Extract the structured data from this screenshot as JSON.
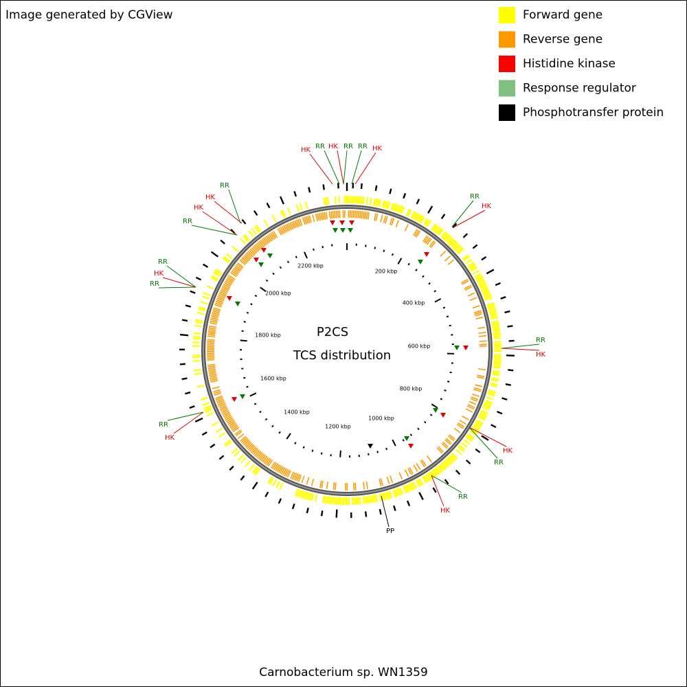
{
  "header": {
    "title": "Image generated by CGView"
  },
  "legend": [
    {
      "label": "Forward gene",
      "color": "#ffff00"
    },
    {
      "label": "Reverse gene",
      "color": "#ff9900"
    },
    {
      "label": "Histidine kinase",
      "color": "#ff0000"
    },
    {
      "label": "Response regulator",
      "color": "#7fbf7f"
    },
    {
      "label": "Phosphotransfer protein",
      "color": "#000000"
    }
  ],
  "center": {
    "title": "P2CS",
    "subtitle": "TCS distribution"
  },
  "scale_labels": [
    "200 kbp",
    "400 kbp",
    "600 kbp",
    "800 kbp",
    "1000 kbp",
    "1200 kbp",
    "1400 kbp",
    "1600 kbp",
    "1800 kbp",
    "2000 kbp",
    "2200 kbp"
  ],
  "callouts": [
    {
      "label": "HK",
      "color": "#e00000"
    },
    {
      "label": "RR",
      "color": "#007a00"
    },
    {
      "label": "HK",
      "color": "#e00000"
    },
    {
      "label": "RR",
      "color": "#007a00"
    },
    {
      "label": "RR",
      "color": "#007a00"
    },
    {
      "label": "HK",
      "color": "#e00000"
    },
    {
      "label": "RR",
      "color": "#007a00"
    },
    {
      "label": "HK",
      "color": "#e00000"
    },
    {
      "label": "RR",
      "color": "#007a00"
    },
    {
      "label": "HK",
      "color": "#e00000"
    },
    {
      "label": "HK",
      "color": "#e00000"
    },
    {
      "label": "RR",
      "color": "#007a00"
    },
    {
      "label": "RR",
      "color": "#007a00"
    },
    {
      "label": "HK",
      "color": "#e00000"
    },
    {
      "label": "PP",
      "color": "#000000"
    },
    {
      "label": "RR",
      "color": "#007a00"
    },
    {
      "label": "HK",
      "color": "#e00000"
    },
    {
      "label": "RR",
      "color": "#007a00"
    },
    {
      "label": "HK",
      "color": "#e00000"
    },
    {
      "label": "RR",
      "color": "#007a00"
    },
    {
      "label": "RR",
      "color": "#007a00"
    },
    {
      "label": "HK",
      "color": "#e00000"
    },
    {
      "label": "HK",
      "color": "#e00000"
    },
    {
      "label": "RR",
      "color": "#007a00"
    }
  ],
  "footer": "Carnobacterium sp. WN1359"
}
